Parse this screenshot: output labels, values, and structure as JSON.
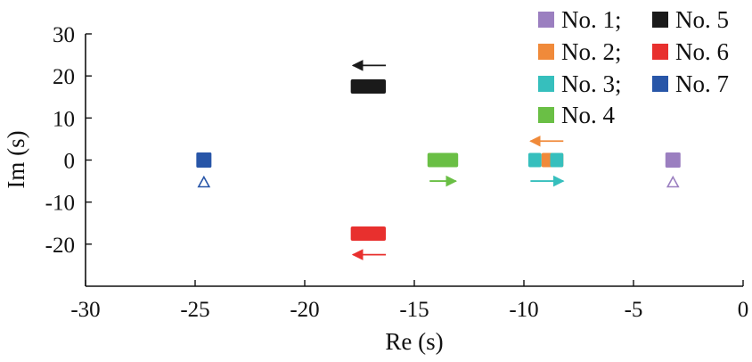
{
  "chart_data": {
    "type": "scatter",
    "xlabel": "Re (s)",
    "ylabel": "Im (s)",
    "xlim": [
      -30,
      0
    ],
    "ylim": [
      -30,
      30
    ],
    "xticks": [
      -30,
      -25,
      -20,
      -15,
      -10,
      -5,
      0
    ],
    "yticks": [
      -20,
      -10,
      0,
      10,
      20,
      30
    ],
    "xtick_labels": [
      "-30",
      "-25",
      "-20",
      "-15",
      "-10",
      "-5",
      "0"
    ],
    "ytick_labels": [
      "-20",
      "-10",
      "0",
      "10",
      "20",
      "30"
    ],
    "legend_placement": "top-right",
    "legend": [
      {
        "label": "No. 1;",
        "color": "#9b7fc0"
      },
      {
        "label": "No. 5",
        "color": "#1a1a1a"
      },
      {
        "label": "No. 2;",
        "color": "#f08a3a"
      },
      {
        "label": "No. 6",
        "color": "#e8302e"
      },
      {
        "label": "No. 3;",
        "color": "#36bfbd"
      },
      {
        "label": "No. 7",
        "color": "#2856a8"
      },
      {
        "label": "No. 4",
        "color": "#6abf45"
      }
    ],
    "series": [
      {
        "label": "No. 1;",
        "color": "#9b7fc0",
        "shape": "square",
        "points": [
          [
            -3.2,
            0
          ]
        ],
        "triangle": [
          -3.2,
          -5.3
        ]
      },
      {
        "label": "No. 2;",
        "color": "#f08a3a",
        "shape": "band",
        "x_range": [
          -9.2,
          -8.2
        ],
        "y": 0,
        "arrow": {
          "x_from": -8.2,
          "x_to": -9.7,
          "y": 4.5
        }
      },
      {
        "label": "No. 3;",
        "color": "#36bfbd",
        "shape": "band",
        "x_range": [
          -9.8,
          -8.2
        ],
        "y": 0,
        "gap": [
          -9.2,
          -8.8
        ],
        "arrow": {
          "x_from": -9.7,
          "x_to": -8.2,
          "y": -5
        }
      },
      {
        "label": "No. 4",
        "color": "#6abf45",
        "shape": "band",
        "x_range": [
          -14.4,
          -13.0
        ],
        "y": 0,
        "arrow": {
          "x_from": -14.3,
          "x_to": -13.1,
          "y": -5
        }
      },
      {
        "label": "No. 5",
        "color": "#1a1a1a",
        "shape": "band",
        "x_range": [
          -17.9,
          -16.3
        ],
        "y": 17.5,
        "arrow": {
          "x_from": -16.3,
          "x_to": -17.8,
          "y": 22.5
        }
      },
      {
        "label": "No. 6",
        "color": "#e8302e",
        "shape": "band",
        "x_range": [
          -17.9,
          -16.3
        ],
        "y": -17.5,
        "arrow": {
          "x_from": -16.3,
          "x_to": -17.8,
          "y": -22.5
        }
      },
      {
        "label": "No. 7",
        "color": "#2856a8",
        "shape": "square",
        "points": [
          [
            -24.6,
            0
          ]
        ],
        "triangle": [
          -24.6,
          -5.3
        ]
      }
    ]
  }
}
